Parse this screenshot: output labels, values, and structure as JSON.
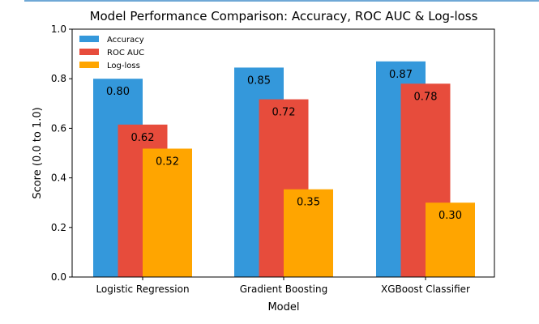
{
  "chart_data": {
    "type": "bar",
    "title": "Model Performance Comparison: Accuracy, ROC AUC & Log-loss",
    "xlabel": "Model",
    "ylabel": "Score (0.0 to 1.0)",
    "ylim": [
      0,
      1.0
    ],
    "yticks": [
      "0.0",
      "0.2",
      "0.4",
      "0.6",
      "0.8",
      "1.0"
    ],
    "categories": [
      "Logistic Regression",
      "Gradient Boosting",
      "XGBoost Classifier"
    ],
    "series": [
      {
        "name": "Accuracy",
        "color": "#3498db",
        "values": [
          0.8,
          0.845,
          0.87
        ],
        "labels": [
          "0.80",
          "0.85",
          "0.87"
        ]
      },
      {
        "name": "ROC AUC",
        "color": "#e74c3c",
        "values": [
          0.615,
          0.717,
          0.78
        ],
        "labels": [
          "0.62",
          "0.72",
          "0.78"
        ]
      },
      {
        "name": "Log-loss",
        "color": "#ffa500",
        "values": [
          0.518,
          0.354,
          0.3
        ],
        "labels": [
          "0.52",
          "0.35",
          "0.30"
        ]
      }
    ],
    "legend": "top-left",
    "grid": false
  }
}
